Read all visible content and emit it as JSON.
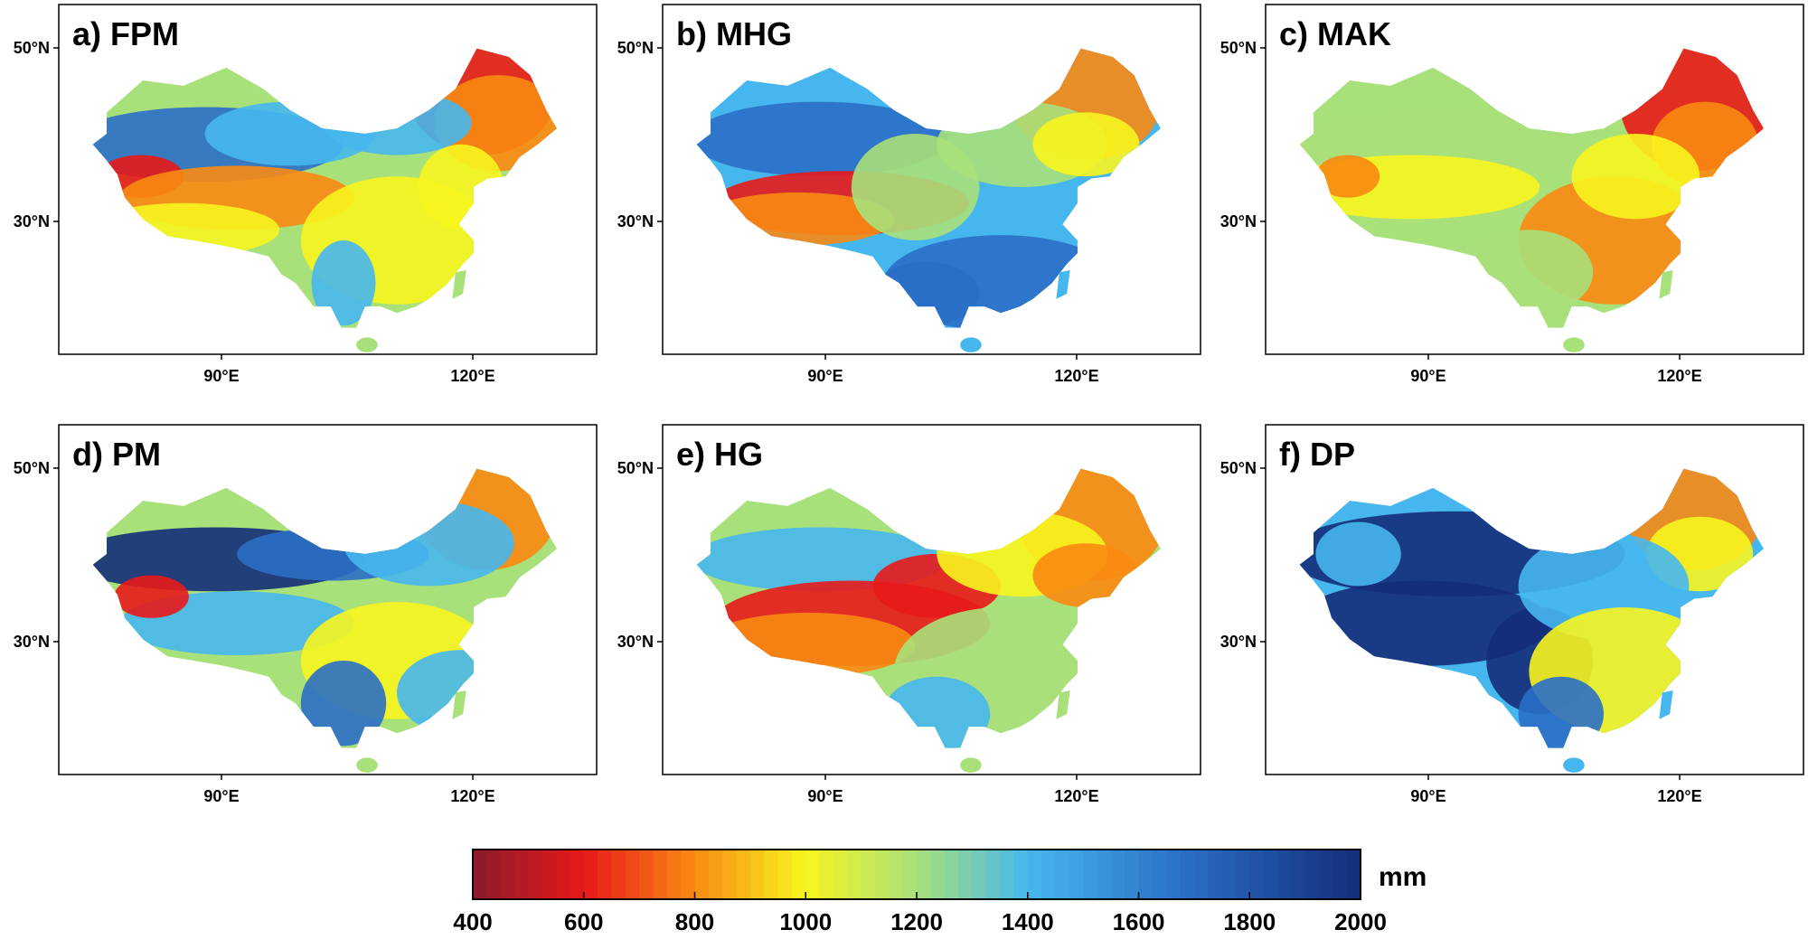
{
  "panels": [
    {
      "id": "a",
      "label": "a) FPM"
    },
    {
      "id": "b",
      "label": "b) MHG"
    },
    {
      "id": "c",
      "label": "c) MAK"
    },
    {
      "id": "d",
      "label": "d) PM"
    },
    {
      "id": "e",
      "label": "e) HG"
    },
    {
      "id": "f",
      "label": "f) DP"
    }
  ],
  "axes": {
    "lat_ticks": [
      {
        "value": 50,
        "label": "50°N"
      },
      {
        "value": 30,
        "label": "30°N"
      }
    ],
    "lon_ticks": [
      {
        "value": 90,
        "label": "90°E"
      },
      {
        "value": 120,
        "label": "120°E"
      }
    ]
  },
  "colorbar": {
    "min": 400,
    "max": 2000,
    "ticks": [
      400,
      600,
      800,
      1000,
      1200,
      1400,
      1600,
      1800,
      2000
    ],
    "unit": "mm",
    "colors": {
      "low": "#8b1a2b",
      "red": "#e8191a",
      "orange": "#f98a12",
      "yellow": "#f7f51e",
      "lightgreen": "#a8e07a",
      "lightblue": "#46b7ee",
      "blue": "#2a6fc6",
      "high": "#142d7a"
    }
  }
}
